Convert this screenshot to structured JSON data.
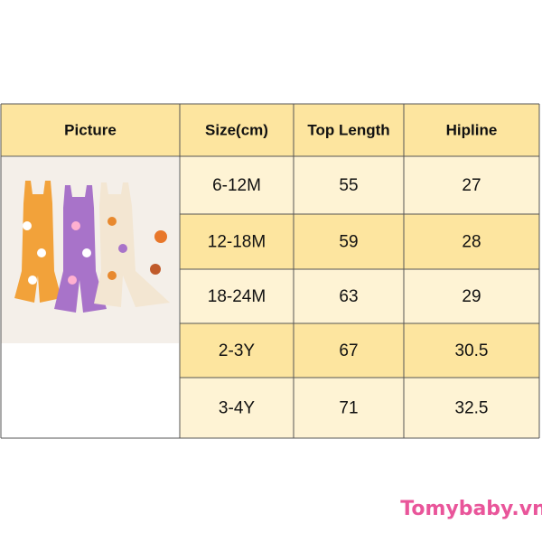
{
  "table": {
    "header": [
      "Picture",
      "Size(cm)",
      "Top Length",
      "Hipline"
    ],
    "rows": [
      [
        "6-12M",
        "55",
        "27"
      ],
      [
        "12-18M",
        "59",
        "28"
      ],
      [
        "18-24M",
        "63",
        "29"
      ],
      [
        "2-3Y",
        "67",
        "30.5"
      ],
      [
        "3-4Y",
        "71",
        "32.5"
      ]
    ]
  },
  "watermark": "Tomybaby.vn"
}
